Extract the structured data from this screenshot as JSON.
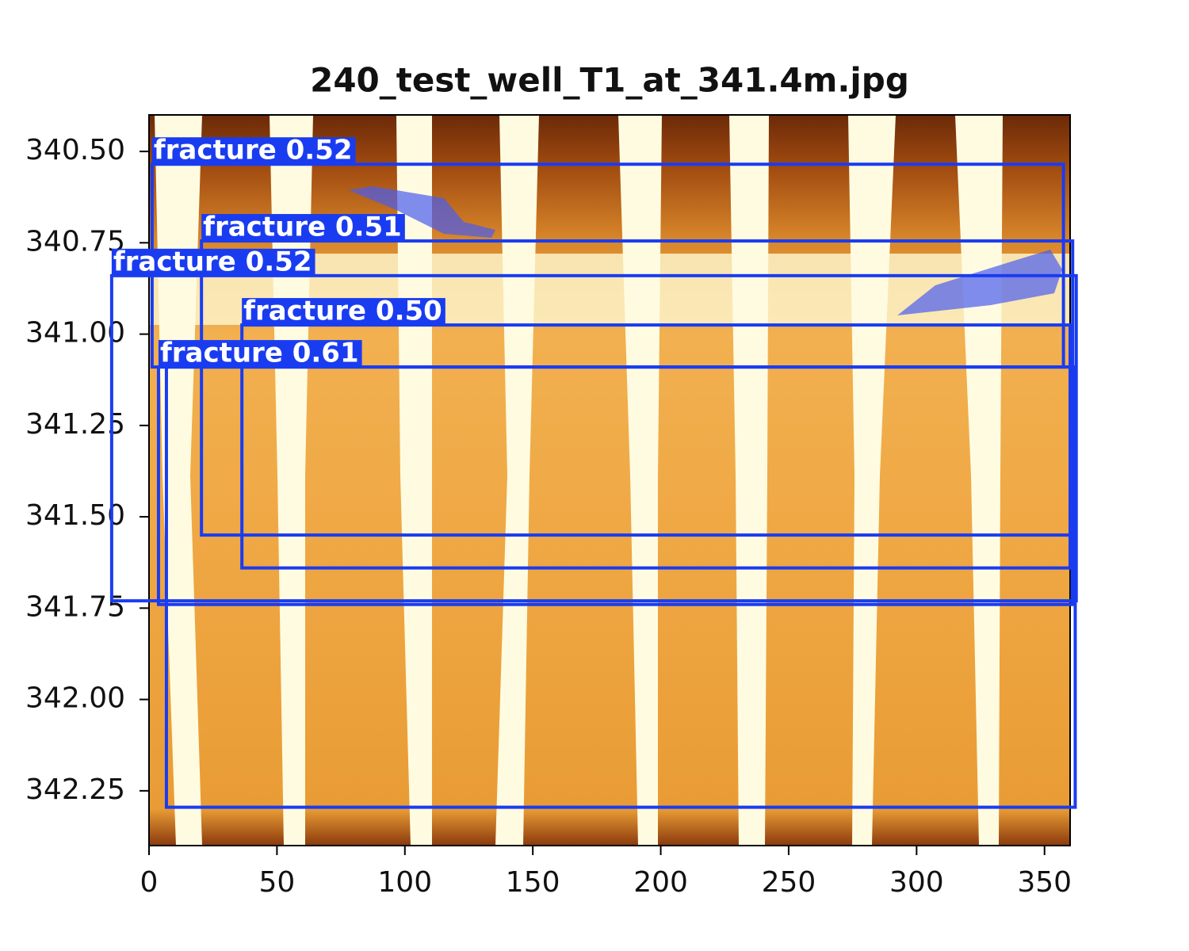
{
  "chart_data": {
    "type": "image-detections",
    "title": "240_test_well_T1_at_341.4m.jpg",
    "xlim": [
      0,
      360
    ],
    "xticks": [
      0,
      50,
      100,
      150,
      200,
      250,
      300,
      350
    ],
    "ylim": [
      340.4,
      342.4
    ],
    "y_inverted": true,
    "yticks": [
      {
        "value": 340.5,
        "label": "340.50"
      },
      {
        "value": 340.75,
        "label": "340.75"
      },
      {
        "value": 341,
        "label": "341.00"
      },
      {
        "value": 341.25,
        "label": "341.25"
      },
      {
        "value": 341.5,
        "label": "341.50"
      },
      {
        "value": 341.75,
        "label": "341.75"
      },
      {
        "value": 342,
        "label": "342.00"
      },
      {
        "value": 342.25,
        "label": "342.25"
      }
    ],
    "box_color": "#1a3cf0",
    "detections": [
      {
        "label": "fracture 0.52",
        "x0": 1.2,
        "x1": 357.4,
        "y0": 340.535,
        "y1": 341.09
      },
      {
        "label": "fracture 0.51",
        "x0": 20.5,
        "x1": 361,
        "y0": 340.745,
        "y1": 341.55
      },
      {
        "label": "fracture 0.52",
        "x0": -14.6,
        "x1": 362.4,
        "y0": 340.84,
        "y1": 341.73
      },
      {
        "label": "fracture 0.50",
        "x0": 36.3,
        "x1": 360,
        "y0": 340.975,
        "y1": 341.64
      },
      {
        "label": "fracture 0.61",
        "x0": 3.7,
        "x1": 360.8,
        "y0": 341.09,
        "y1": 341.74
      },
      {
        "x0": 6.8,
        "x1": 362,
        "y0": 341.09,
        "y1": 342.295
      }
    ]
  }
}
